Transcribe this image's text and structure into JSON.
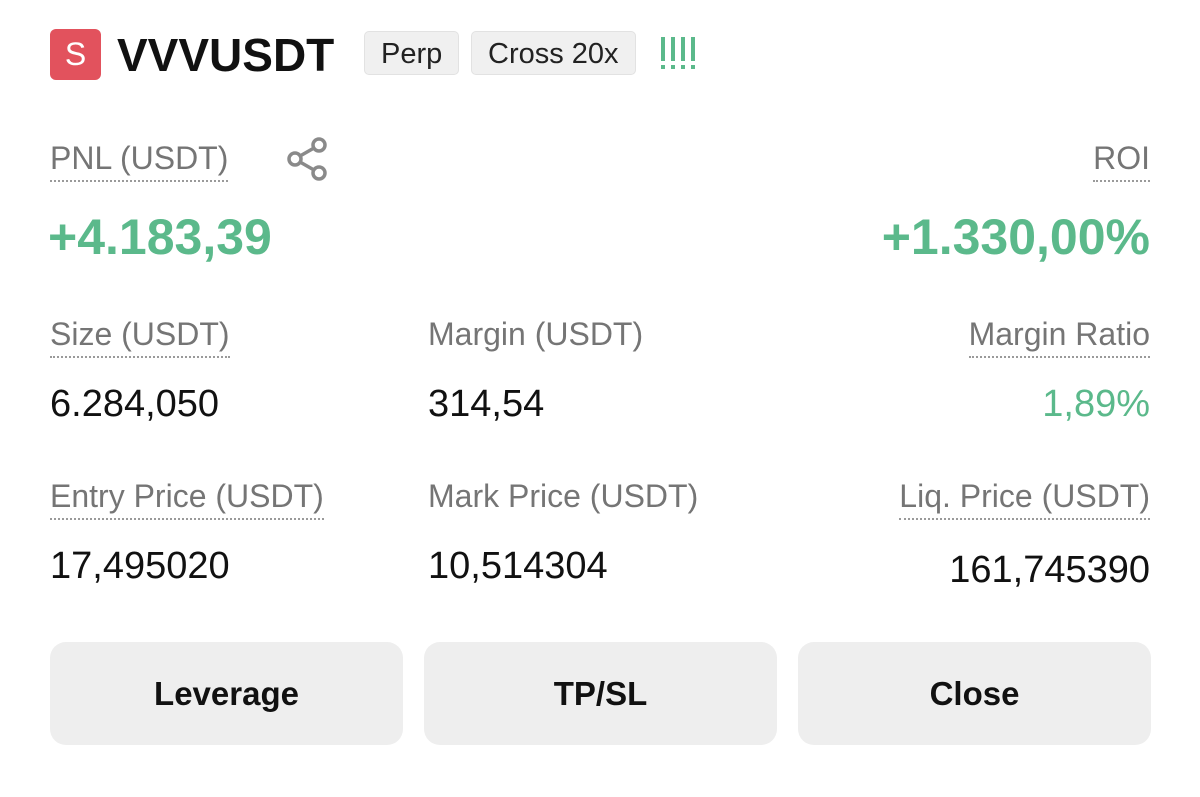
{
  "header": {
    "badge": "S",
    "symbol": "VVVUSDT",
    "tags": [
      "Perp",
      "Cross 20x"
    ]
  },
  "pnl": {
    "label": "PNL (USDT)",
    "value": "+4.183,39"
  },
  "roi": {
    "label": "ROI",
    "value": "+1.330,00%"
  },
  "fields": [
    {
      "label": "Size (USDT)",
      "value": "6.284,050"
    },
    {
      "label": "Margin (USDT)",
      "value": "314,54"
    },
    {
      "label": "Margin Ratio",
      "value": "1,89%"
    },
    {
      "label": "Entry Price (USDT)",
      "value": "17,495020"
    },
    {
      "label": "Mark Price (USDT)",
      "value": "10,514304"
    },
    {
      "label": "Liq. Price (USDT)",
      "value": "161,745390"
    }
  ],
  "buttons": [
    "Leverage",
    "TP/SL",
    "Close"
  ]
}
